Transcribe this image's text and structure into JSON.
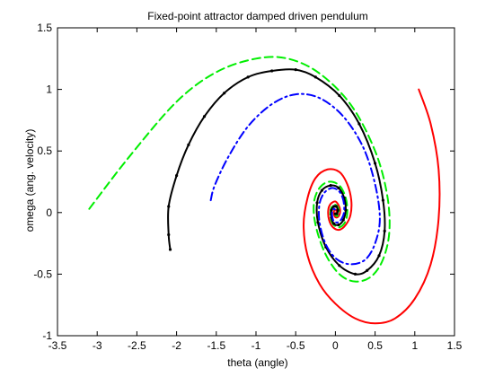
{
  "chart_data": {
    "type": "line",
    "title": "Fixed-point attractor damped driven pendulum",
    "xlabel": "theta (angle)",
    "ylabel": "omega (ang. velocity)",
    "xlim": [
      -3.5,
      1.5
    ],
    "ylim": [
      -1,
      1.5
    ],
    "xticks": [
      "-3.5",
      "-3",
      "-2.5",
      "-2",
      "-1.5",
      "-1",
      "-0.5",
      "0",
      "0.5",
      "1",
      "1.5"
    ],
    "yticks": [
      "-1",
      "-0.5",
      "0",
      "0.5",
      "1",
      "1.5"
    ],
    "grid": false,
    "legend": "none",
    "series": [
      {
        "color": "#ff0000",
        "style": "solid",
        "points": [
          [
            1.05,
            1.0
          ],
          [
            1.2,
            0.72
          ],
          [
            1.3,
            0.35
          ],
          [
            1.3,
            -0.05
          ],
          [
            1.2,
            -0.42
          ],
          [
            1.0,
            -0.7
          ],
          [
            0.75,
            -0.86
          ],
          [
            0.5,
            -0.9
          ],
          [
            0.25,
            -0.86
          ],
          [
            0.0,
            -0.74
          ],
          [
            -0.2,
            -0.58
          ],
          [
            -0.35,
            -0.35
          ],
          [
            -0.4,
            -0.1
          ],
          [
            -0.35,
            0.12
          ],
          [
            -0.25,
            0.28
          ],
          [
            -0.1,
            0.35
          ],
          [
            0.05,
            0.33
          ],
          [
            0.15,
            0.23
          ],
          [
            0.2,
            0.1
          ],
          [
            0.19,
            -0.02
          ],
          [
            0.13,
            -0.1
          ],
          [
            0.05,
            -0.14
          ],
          [
            -0.03,
            -0.12
          ],
          [
            -0.08,
            -0.06
          ],
          [
            -0.09,
            0.02
          ],
          [
            -0.06,
            0.07
          ],
          [
            0.0,
            0.09
          ],
          [
            0.04,
            0.06
          ],
          [
            0.06,
            0.02
          ],
          [
            0.05,
            -0.02
          ],
          [
            0.02,
            -0.04
          ],
          [
            -0.01,
            -0.03
          ],
          [
            -0.02,
            0.0
          ],
          [
            -0.01,
            0.02
          ],
          [
            0.01,
            0.02
          ],
          [
            0.015,
            0.0
          ]
        ]
      },
      {
        "color": "#00ee00",
        "style": "dashed",
        "points": [
          [
            -3.1,
            0.03
          ],
          [
            -2.6,
            0.45
          ],
          [
            -2.0,
            0.9
          ],
          [
            -1.5,
            1.14
          ],
          [
            -1.0,
            1.25
          ],
          [
            -0.6,
            1.25
          ],
          [
            -0.2,
            1.13
          ],
          [
            0.2,
            0.87
          ],
          [
            0.5,
            0.5
          ],
          [
            0.65,
            0.15
          ],
          [
            0.68,
            -0.15
          ],
          [
            0.6,
            -0.38
          ],
          [
            0.45,
            -0.52
          ],
          [
            0.25,
            -0.56
          ],
          [
            0.05,
            -0.5
          ],
          [
            -0.13,
            -0.33
          ],
          [
            -0.25,
            -0.1
          ],
          [
            -0.27,
            0.08
          ],
          [
            -0.2,
            0.2
          ],
          [
            -0.08,
            0.25
          ],
          [
            0.05,
            0.22
          ],
          [
            0.13,
            0.12
          ],
          [
            0.15,
            0.0
          ],
          [
            0.12,
            -0.08
          ],
          [
            0.05,
            -0.12
          ],
          [
            -0.02,
            -0.1
          ],
          [
            -0.06,
            -0.05
          ],
          [
            -0.06,
            0.02
          ],
          [
            -0.03,
            0.06
          ],
          [
            0.01,
            0.06
          ],
          [
            0.04,
            0.03
          ],
          [
            0.04,
            -0.01
          ],
          [
            0.02,
            -0.03
          ],
          [
            0.0,
            -0.02
          ]
        ]
      },
      {
        "color": "#000000",
        "style": "solid-markers",
        "points": [
          [
            -2.08,
            -0.3
          ],
          [
            -2.1,
            -0.18
          ],
          [
            -2.1,
            0.05
          ],
          [
            -2.0,
            0.3
          ],
          [
            -1.85,
            0.55
          ],
          [
            -1.65,
            0.78
          ],
          [
            -1.4,
            0.97
          ],
          [
            -1.1,
            1.1
          ],
          [
            -0.8,
            1.15
          ],
          [
            -0.5,
            1.16
          ],
          [
            -0.25,
            1.1
          ],
          [
            0.05,
            0.95
          ],
          [
            0.3,
            0.72
          ],
          [
            0.5,
            0.4
          ],
          [
            0.6,
            0.1
          ],
          [
            0.62,
            -0.15
          ],
          [
            0.55,
            -0.35
          ],
          [
            0.4,
            -0.47
          ],
          [
            0.25,
            -0.5
          ],
          [
            0.05,
            -0.43
          ],
          [
            -0.12,
            -0.28
          ],
          [
            -0.22,
            -0.08
          ],
          [
            -0.23,
            0.08
          ],
          [
            -0.17,
            0.18
          ],
          [
            -0.06,
            0.22
          ],
          [
            0.04,
            0.2
          ],
          [
            0.11,
            0.12
          ],
          [
            0.13,
            0.02
          ],
          [
            0.1,
            -0.06
          ],
          [
            0.04,
            -0.1
          ],
          [
            -0.02,
            -0.09
          ],
          [
            -0.05,
            -0.04
          ],
          [
            -0.05,
            0.02
          ],
          [
            -0.02,
            0.05
          ],
          [
            0.01,
            0.05
          ],
          [
            0.03,
            0.02
          ],
          [
            0.02,
            -0.01
          ],
          [
            0.0,
            -0.01
          ]
        ]
      },
      {
        "color": "#0000ff",
        "style": "dashdot",
        "points": [
          [
            -1.57,
            0.1
          ],
          [
            -1.52,
            0.22
          ],
          [
            -1.35,
            0.45
          ],
          [
            -1.1,
            0.7
          ],
          [
            -0.8,
            0.88
          ],
          [
            -0.5,
            0.96
          ],
          [
            -0.2,
            0.93
          ],
          [
            0.1,
            0.78
          ],
          [
            0.35,
            0.53
          ],
          [
            0.5,
            0.23
          ],
          [
            0.56,
            -0.05
          ],
          [
            0.5,
            -0.25
          ],
          [
            0.38,
            -0.38
          ],
          [
            0.2,
            -0.42
          ],
          [
            0.02,
            -0.38
          ],
          [
            -0.12,
            -0.26
          ],
          [
            -0.2,
            -0.08
          ],
          [
            -0.2,
            0.07
          ],
          [
            -0.14,
            0.16
          ],
          [
            -0.04,
            0.2
          ],
          [
            0.05,
            0.17
          ],
          [
            0.1,
            0.1
          ],
          [
            0.11,
            0.01
          ],
          [
            0.08,
            -0.05
          ],
          [
            0.03,
            -0.08
          ],
          [
            -0.02,
            -0.07
          ],
          [
            -0.04,
            -0.03
          ],
          [
            -0.04,
            0.01
          ],
          [
            -0.02,
            0.03
          ],
          [
            0.0,
            0.02
          ]
        ]
      }
    ]
  }
}
